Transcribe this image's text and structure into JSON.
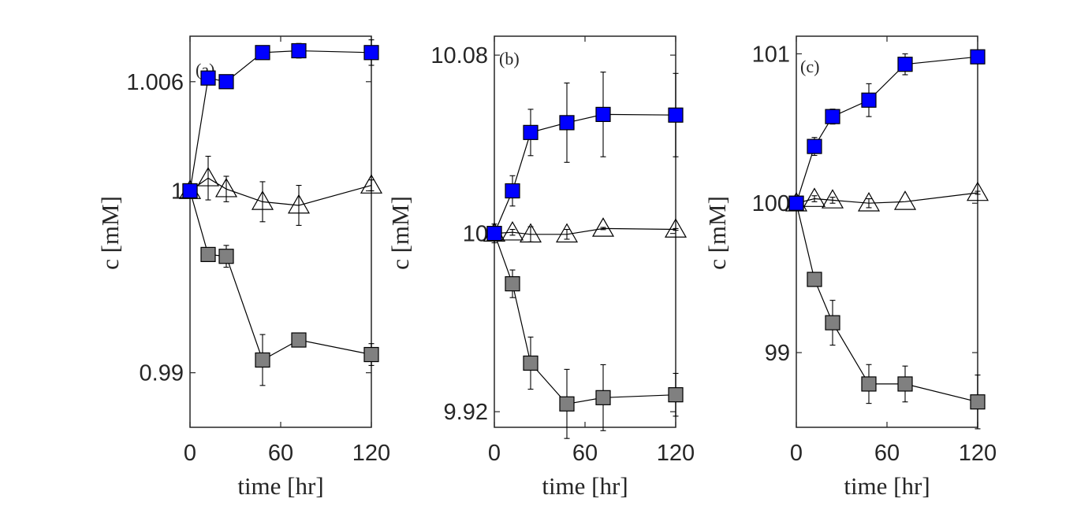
{
  "colors": {
    "up": "#0000ff",
    "down": "#808080",
    "flat": "#ffffff",
    "stroke": "#000000"
  },
  "chart_data": [
    {
      "type": "scatter",
      "label": "(a)",
      "xlabel": "time [hr]",
      "ylabel": "c [mM]",
      "xlim": [
        0,
        120
      ],
      "ylim": [
        0.987,
        1.0085
      ],
      "xticks": [
        0,
        60,
        120
      ],
      "xtick_labels": [
        "0",
        "60",
        "120"
      ],
      "yticks": [
        0.99,
        1,
        1.006
      ],
      "ytick_labels": [
        "0.99",
        "1",
        "1.006"
      ],
      "series": [
        {
          "name": "blue squares",
          "marker": "square",
          "color": "blue",
          "x": [
            0,
            12,
            24,
            48,
            72,
            120
          ],
          "y": [
            1.0,
            1.0062,
            1.006,
            1.0076,
            1.0077,
            1.0076
          ],
          "err": [
            0,
            0.0002,
            0.0002,
            0.0003,
            0.0004,
            0.0007
          ]
        },
        {
          "name": "open triangles",
          "marker": "triangle",
          "color": "white",
          "x": [
            0,
            12,
            24,
            48,
            72,
            120
          ],
          "y": [
            1.0,
            1.0007,
            1.0001,
            0.9994,
            0.9992,
            1.0003
          ],
          "err": [
            0,
            0.0012,
            0.0007,
            0.0011,
            0.0011,
            0.0003
          ]
        },
        {
          "name": "gray squares",
          "marker": "square",
          "color": "gray",
          "x": [
            0,
            12,
            24,
            48,
            72,
            120
          ],
          "y": [
            1.0,
            0.9965,
            0.9964,
            0.9907,
            0.9918,
            0.991
          ],
          "err": [
            0,
            0.0002,
            0.0006,
            0.0014,
            0.0002,
            0.0006
          ]
        }
      ]
    },
    {
      "type": "scatter",
      "label": "(b)",
      "xlabel": "time [hr]",
      "ylabel": "c [mM]",
      "xlim": [
        0,
        120
      ],
      "ylim": [
        9.913,
        10.0885
      ],
      "xticks": [
        0,
        60,
        120
      ],
      "xtick_labels": [
        "0",
        "60",
        "120"
      ],
      "yticks": [
        9.92,
        10,
        10.08
      ],
      "ytick_labels": [
        "9.92",
        "10",
        "10.08"
      ],
      "series": [
        {
          "name": "blue squares",
          "marker": "square",
          "color": "blue",
          "x": [
            0,
            12,
            24,
            48,
            72,
            120
          ],
          "y": [
            10.0,
            10.0191,
            10.0453,
            10.0497,
            10.0534,
            10.0531
          ],
          "err": [
            0,
            0.0068,
            0.0104,
            0.0178,
            0.019,
            0.0187
          ]
        },
        {
          "name": "open triangles",
          "marker": "triangle",
          "color": "white",
          "x": [
            0,
            12,
            24,
            48,
            72,
            120
          ],
          "y": [
            10.0,
            10.0005,
            9.9996,
            9.9996,
            10.0022,
            10.0018
          ],
          "err": [
            0,
            0.0013,
            0.0034,
            0.0022,
            0.0005,
            0.0004
          ]
        },
        {
          "name": "gray squares",
          "marker": "square",
          "color": "gray",
          "x": [
            0,
            12,
            24,
            48,
            72,
            120
          ],
          "y": [
            10.0,
            9.9774,
            9.9418,
            9.9235,
            9.9263,
            9.9276
          ],
          "err": [
            0.0042,
            0.0062,
            0.0117,
            0.0155,
            0.0148,
            0.0096
          ]
        }
      ]
    },
    {
      "type": "scatter",
      "label": "(c)",
      "xlabel": "time [hr]",
      "ylabel": "c [mM]",
      "xlim": [
        0,
        120
      ],
      "ylim": [
        98.5,
        101.118
      ],
      "xticks": [
        0,
        60,
        120
      ],
      "xtick_labels": [
        "0",
        "60",
        "120"
      ],
      "yticks": [
        99,
        100,
        101
      ],
      "ytick_labels": [
        "99",
        "100",
        "101"
      ],
      "series": [
        {
          "name": "blue squares",
          "marker": "square",
          "color": "blue",
          "x": [
            0,
            12,
            24,
            48,
            72,
            120
          ],
          "y": [
            100.0,
            100.38,
            100.58,
            100.69,
            100.93,
            100.98
          ],
          "err": [
            0,
            0.06,
            0.05,
            0.11,
            0.07,
            0.03
          ]
        },
        {
          "name": "open triangles",
          "marker": "triangle",
          "color": "white",
          "x": [
            0,
            12,
            24,
            48,
            72,
            120
          ],
          "y": [
            100.0,
            100.03,
            100.02,
            100.0,
            100.01,
            100.07
          ],
          "err": [
            0,
            0.02,
            0.02,
            0.03,
            0.0,
            0.01
          ]
        },
        {
          "name": "gray squares",
          "marker": "square",
          "color": "gray",
          "x": [
            0,
            12,
            24,
            48,
            72,
            120
          ],
          "y": [
            100.0,
            99.49,
            99.2,
            98.79,
            98.79,
            98.67
          ],
          "err": [
            0,
            0.04,
            0.15,
            0.13,
            0.12,
            0.18
          ]
        }
      ]
    }
  ]
}
